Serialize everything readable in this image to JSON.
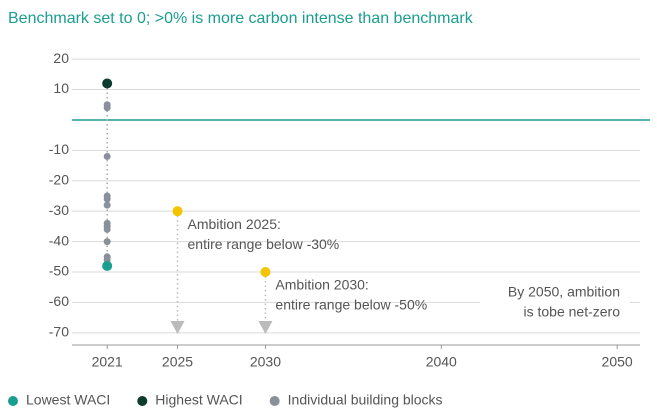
{
  "chart_data": {
    "type": "scatter",
    "title": "Benchmark set to 0; >0% is more carbon intense than benchmark",
    "xlim": [
      2019,
      2051.3
    ],
    "xticks": [
      2021,
      2025,
      2030,
      2040,
      2050
    ],
    "ylim": [
      -74,
      23
    ],
    "yticks": [
      20,
      10,
      -10,
      -20,
      -30,
      -40,
      -50,
      -60,
      -70
    ],
    "grid": true,
    "reference_line": {
      "value": 0,
      "color": "#1a9e8f"
    },
    "legend": "bottom",
    "series": [
      {
        "name": "Lowest WACI",
        "color": "#1a9e8f",
        "x": [
          2021
        ],
        "values": [
          -48
        ]
      },
      {
        "name": "Highest WACI",
        "color": "#0d3b2e",
        "x": [
          2021
        ],
        "values": [
          12
        ]
      },
      {
        "name": "Individual building blocks",
        "color": "#8a9099",
        "x": [
          2021,
          2021,
          2021,
          2021,
          2021,
          2021,
          2021,
          2021,
          2021,
          2021,
          2021,
          2021
        ],
        "values": [
          5,
          4,
          -12,
          -25,
          -26,
          -28,
          -34,
          -35,
          -36,
          -40,
          -45,
          -46
        ]
      }
    ],
    "annotations": [
      {
        "x": 2025,
        "y": -30,
        "color": "#f5c400",
        "lines": [
          "Ambition 2025:",
          "entire range below -30%"
        ]
      },
      {
        "x": 2030,
        "y": -50,
        "color": "#f5c400",
        "lines": [
          "Ambition 2030:",
          "entire range below -50%"
        ]
      },
      {
        "lines": [
          "By 2050, ambition",
          "is tobe net-zero"
        ]
      }
    ]
  }
}
